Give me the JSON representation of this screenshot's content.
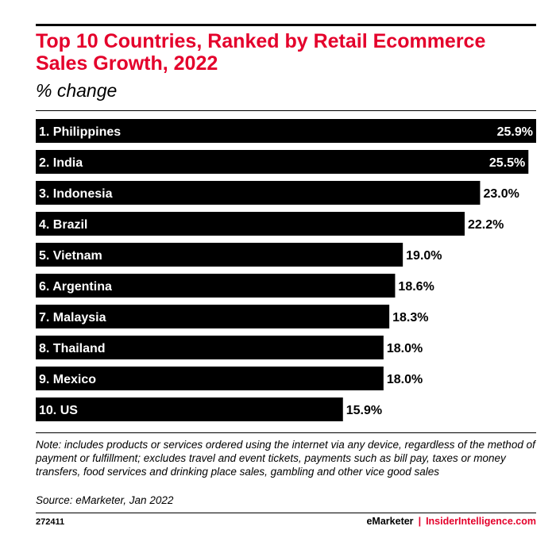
{
  "title": "Top 10 Countries, Ranked by Retail Ecommerce Sales Growth, 2022",
  "subtitle": "% change",
  "note": "Note: includes products or services ordered using the internet via any device, regardless of the method of payment or fulfillment; excludes travel and event tickets, payments such as bill pay, taxes or money transfers, food services and drinking place sales, gambling and other vice good sales",
  "source": "Source: eMarketer, Jan 2022",
  "chart_id": "272411",
  "brand": {
    "left": "eMarketer",
    "separator": "|",
    "right": "InsiderIntelligence.com"
  },
  "colors": {
    "title": "#e4002b",
    "bar": "#000000",
    "bar_label": "#ffffff"
  },
  "chart_data": {
    "type": "bar",
    "orientation": "horizontal",
    "categories": [
      "1. Philippines",
      "2. India",
      "3. Indonesia",
      "4. Brazil",
      "5. Vietnam",
      "6. Argentina",
      "7. Malaysia",
      "8. Thailand",
      "9. Mexico",
      "10. US"
    ],
    "values": [
      25.9,
      25.5,
      23.0,
      22.2,
      19.0,
      18.6,
      18.3,
      18.0,
      18.0,
      15.9
    ],
    "labels": [
      "25.9%",
      "25.5%",
      "23.0%",
      "22.2%",
      "19.0%",
      "18.6%",
      "18.3%",
      "18.0%",
      "18.0%",
      "15.9%"
    ],
    "title": "Top 10 Countries, Ranked by Retail Ecommerce Sales Growth, 2022",
    "subtitle": "% change",
    "xlabel": "",
    "ylabel": "",
    "xlim": [
      0,
      25.9
    ],
    "grid": false,
    "legend": "none"
  }
}
